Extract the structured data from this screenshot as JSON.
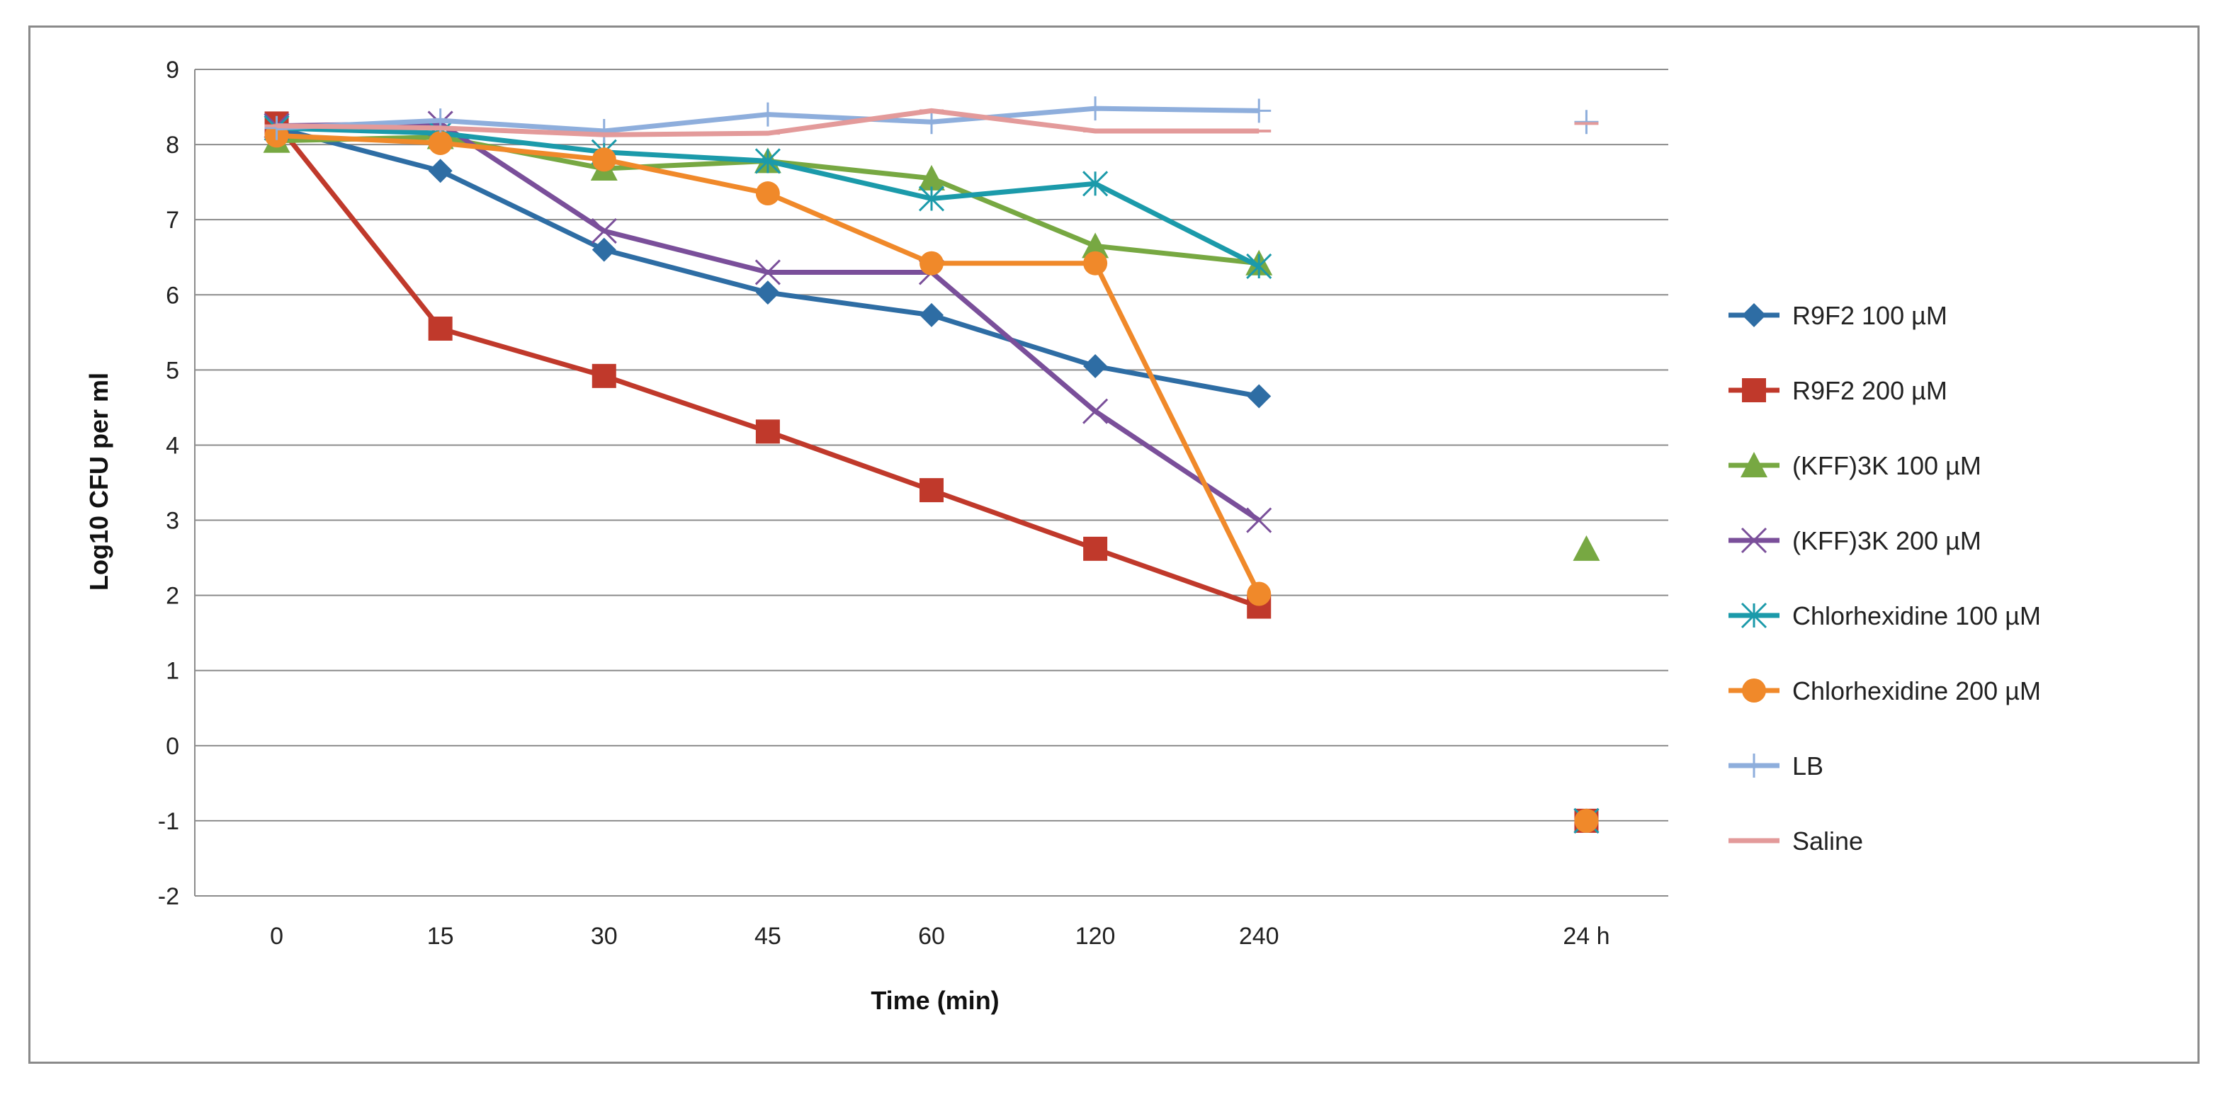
{
  "chart_data": {
    "type": "line",
    "title": "",
    "xlabel": "Time (min)",
    "ylabel": "Log10 CFU per ml",
    "categories": [
      "0",
      "15",
      "30",
      "45",
      "60",
      "120",
      "240",
      "",
      "24 h"
    ],
    "ylim": [
      -2,
      9
    ],
    "yticks": [
      -2,
      -1,
      0,
      1,
      2,
      3,
      4,
      5,
      6,
      7,
      8,
      9
    ],
    "grid": true,
    "legend_position": "right",
    "series": [
      {
        "name": "R9F2 100 µM",
        "color": "#2e6da4",
        "marker": "diamond",
        "values": [
          8.22,
          7.65,
          6.6,
          6.03,
          5.73,
          5.05,
          4.65,
          null,
          -1.0
        ]
      },
      {
        "name": "R9F2 200 µM",
        "color": "#c0392b",
        "marker": "square",
        "values": [
          8.28,
          5.55,
          4.92,
          4.18,
          3.4,
          2.62,
          1.85,
          null,
          -1.0
        ]
      },
      {
        "name": "(KFF)3K 100 µM",
        "color": "#77a842",
        "marker": "triangle",
        "values": [
          8.05,
          8.1,
          7.68,
          7.78,
          7.55,
          6.65,
          6.42,
          null,
          2.62
        ]
      },
      {
        "name": "(KFF)3K 200 µM",
        "color": "#7a4f9a",
        "marker": "x",
        "values": [
          8.25,
          8.28,
          6.85,
          6.3,
          6.3,
          4.45,
          3.0,
          null,
          -1.0
        ]
      },
      {
        "name": "Chlorhexidine 100 µM",
        "color": "#1b9aaa",
        "marker": "star",
        "values": [
          8.22,
          8.15,
          7.9,
          7.78,
          7.28,
          7.48,
          6.38,
          null,
          -1.0
        ]
      },
      {
        "name": "Chlorhexidine  200 µM",
        "color": "#f0892a",
        "marker": "circle",
        "values": [
          8.12,
          8.02,
          7.8,
          7.35,
          6.42,
          6.42,
          2.02,
          null,
          -1.0
        ]
      },
      {
        "name": "LB",
        "color": "#8eaedc",
        "marker": "plus",
        "values": [
          8.22,
          8.32,
          8.18,
          8.4,
          8.3,
          8.48,
          8.45,
          null,
          8.3
        ]
      },
      {
        "name": "Saline",
        "color": "#e39a9a",
        "marker": "dash",
        "values": [
          8.25,
          8.22,
          8.13,
          8.15,
          8.45,
          8.18,
          8.18,
          null,
          8.28
        ]
      }
    ]
  }
}
